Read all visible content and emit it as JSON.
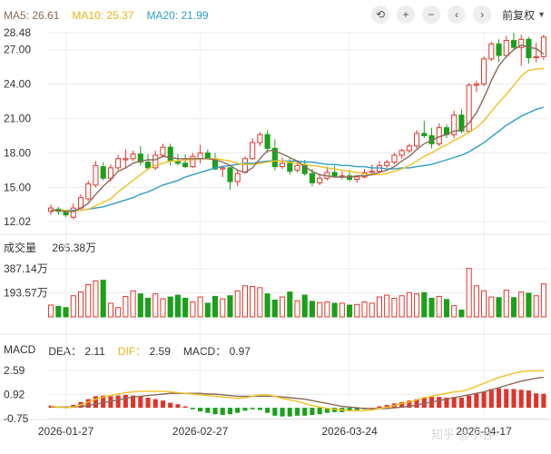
{
  "legend": {
    "ma5_label": "MA5:",
    "ma5_value": "26.61",
    "ma10_label": "MA10:",
    "ma10_value": "25.37",
    "ma20_label": "MA20:",
    "ma20_value": "21.99"
  },
  "toolbar": {
    "icons": [
      "undo-icon",
      "zoom-in-icon",
      "zoom-out-icon",
      "prev-icon",
      "next-icon"
    ],
    "glyphs": [
      "⟲",
      "+",
      "−",
      "‹",
      "›"
    ],
    "adjust_label": "前复权"
  },
  "volume": {
    "label": "成交量",
    "value": "265.38万",
    "axis": [
      "387.14万",
      "193.57万"
    ]
  },
  "macd_header": {
    "macd_title": "MACD",
    "dea_label": "DEA：",
    "dea_value": "2.11",
    "dif_label": "DIF：",
    "dif_value": "2.59",
    "macd_label": "MACD：",
    "macd_value": "0.97"
  },
  "price_axis": [
    "28.48",
    "27.00",
    "24.00",
    "21.00",
    "18.00",
    "15.00",
    "12.02"
  ],
  "macd_axis": [
    "2.59",
    "0.92",
    "-0.75"
  ],
  "date_labels": [
    "2026-01-27",
    "2026-02-27",
    "2026-03-24",
    "2026-04-17"
  ],
  "watermark": "知乎 @小谷",
  "colors": {
    "up": "#e0342b",
    "down": "#1aa01a",
    "ma5": "#8b6a5a",
    "ma10": "#f0c020",
    "ma20": "#2b9ec6",
    "dif": "#f0c020",
    "dea": "#8b6a5a"
  },
  "chart_data": {
    "type": "candlestick",
    "price_ylim": [
      12.02,
      28.48
    ],
    "date_ticks": [
      {
        "index": 2,
        "label": "2026-01-27"
      },
      {
        "index": 20,
        "label": "2026-02-27"
      },
      {
        "index": 40,
        "label": "2026-03-24"
      },
      {
        "index": 58,
        "label": "2026-04-17"
      }
    ],
    "candles": [
      [
        12.9,
        13.2,
        13.5,
        12.6
      ],
      [
        13.1,
        12.9,
        13.3,
        12.6
      ],
      [
        12.9,
        12.6,
        13.0,
        12.4
      ],
      [
        12.4,
        13.2,
        13.6,
        12.2
      ],
      [
        13.2,
        14.1,
        14.4,
        13.0
      ],
      [
        14.0,
        15.3,
        15.6,
        13.8
      ],
      [
        15.2,
        16.9,
        17.3,
        15.0
      ],
      [
        16.8,
        15.8,
        17.2,
        15.6
      ],
      [
        15.8,
        16.7,
        17.0,
        15.5
      ],
      [
        16.7,
        17.5,
        17.8,
        16.5
      ],
      [
        17.4,
        17.5,
        18.3,
        16.7
      ],
      [
        17.5,
        17.9,
        18.2,
        17.3
      ],
      [
        17.9,
        17.2,
        18.6,
        16.9
      ],
      [
        17.2,
        16.7,
        17.9,
        16.5
      ],
      [
        16.7,
        17.8,
        18.2,
        16.5
      ],
      [
        17.8,
        18.5,
        18.8,
        17.6
      ],
      [
        18.5,
        17.3,
        18.8,
        16.9
      ],
      [
        17.3,
        17.1,
        17.9,
        16.9
      ],
      [
        17.1,
        16.8,
        17.9,
        16.7
      ],
      [
        16.8,
        17.7,
        18.0,
        16.7
      ],
      [
        17.5,
        18.0,
        18.7,
        17.1
      ],
      [
        18.0,
        17.6,
        18.3,
        17.5
      ],
      [
        17.5,
        16.6,
        18.0,
        16.5
      ],
      [
        16.6,
        16.7,
        16.9,
        15.9
      ],
      [
        16.7,
        15.5,
        16.8,
        14.8
      ],
      [
        15.5,
        16.2,
        16.5,
        15.1
      ],
      [
        16.3,
        17.5,
        17.7,
        16.2
      ],
      [
        17.5,
        18.9,
        19.3,
        17.4
      ],
      [
        18.9,
        19.6,
        19.8,
        18.6
      ],
      [
        19.6,
        18.4,
        20.0,
        18.0
      ],
      [
        18.4,
        16.8,
        19.2,
        16.5
      ],
      [
        16.8,
        17.1,
        17.6,
        16.6
      ],
      [
        17.1,
        16.4,
        17.5,
        16.1
      ],
      [
        16.5,
        16.9,
        17.3,
        16.3
      ],
      [
        16.9,
        16.2,
        17.4,
        16.0
      ],
      [
        16.2,
        15.4,
        16.6,
        15.1
      ],
      [
        15.4,
        15.8,
        16.2,
        15.2
      ],
      [
        15.8,
        16.3,
        16.8,
        15.6
      ],
      [
        16.3,
        16.0,
        16.9,
        15.9
      ],
      [
        16.0,
        16.0,
        16.4,
        15.7
      ],
      [
        16.0,
        15.7,
        16.5,
        15.5
      ],
      [
        15.7,
        15.9,
        16.0,
        15.4
      ],
      [
        15.9,
        16.3,
        16.6,
        15.8
      ],
      [
        16.3,
        16.4,
        17.0,
        16.2
      ],
      [
        16.4,
        16.9,
        17.3,
        16.3
      ],
      [
        16.9,
        17.2,
        17.4,
        16.7
      ],
      [
        17.2,
        17.8,
        18.0,
        17.0
      ],
      [
        17.8,
        18.2,
        18.4,
        17.5
      ],
      [
        18.2,
        18.6,
        18.8,
        18.0
      ],
      [
        18.6,
        19.7,
        20.0,
        18.4
      ],
      [
        19.7,
        19.5,
        20.8,
        19.3
      ],
      [
        19.5,
        18.8,
        20.2,
        18.4
      ],
      [
        18.8,
        20.2,
        20.6,
        18.6
      ],
      [
        20.2,
        19.6,
        20.5,
        19.3
      ],
      [
        19.6,
        21.3,
        21.7,
        19.3
      ],
      [
        21.3,
        19.9,
        21.8,
        19.7
      ],
      [
        19.9,
        23.9,
        24.1,
        19.7
      ],
      [
        23.9,
        24.0,
        24.3,
        23.3
      ],
      [
        24.0,
        26.2,
        26.4,
        23.8
      ],
      [
        26.2,
        27.5,
        27.7,
        26.0
      ],
      [
        27.5,
        26.5,
        27.9,
        25.9
      ],
      [
        26.5,
        27.8,
        28.2,
        26.3
      ],
      [
        27.8,
        27.2,
        28.48,
        27.0
      ],
      [
        27.2,
        27.9,
        28.3,
        25.6
      ],
      [
        27.9,
        26.3,
        28.1,
        25.8
      ],
      [
        26.3,
        26.4,
        27.6,
        25.9
      ],
      [
        26.4,
        28.1,
        28.3,
        26.1
      ]
    ],
    "ma5": [
      13.0,
      13.0,
      12.9,
      12.9,
      13.2,
      13.6,
      14.4,
      15.1,
      15.7,
      16.4,
      16.7,
      17.1,
      17.3,
      17.4,
      17.4,
      17.7,
      17.6,
      17.5,
      17.5,
      17.5,
      17.5,
      17.5,
      17.4,
      17.2,
      16.9,
      16.5,
      16.3,
      16.7,
      17.5,
      18.2,
      18.2,
      17.9,
      17.6,
      17.3,
      16.8,
      16.4,
      16.1,
      16.0,
      15.9,
      15.9,
      15.9,
      16.0,
      16.0,
      16.1,
      16.3,
      16.5,
      16.8,
      17.3,
      17.7,
      18.3,
      18.8,
      19.1,
      19.4,
      19.6,
      19.9,
      20.0,
      20.6,
      21.5,
      22.8,
      24.3,
      25.6,
      26.4,
      27.0,
      27.4,
      27.2,
      27.1,
      26.61
    ],
    "ma10": [
      13.0,
      13.0,
      13.0,
      12.9,
      13.0,
      13.1,
      13.4,
      13.7,
      14.0,
      14.6,
      15.1,
      15.6,
      16.1,
      16.6,
      16.9,
      17.1,
      17.3,
      17.3,
      17.4,
      17.4,
      17.5,
      17.5,
      17.5,
      17.4,
      17.3,
      17.1,
      17.0,
      17.0,
      17.1,
      17.2,
      17.3,
      17.3,
      17.2,
      17.1,
      17.0,
      16.9,
      16.8,
      16.7,
      16.6,
      16.5,
      16.4,
      16.3,
      16.2,
      16.1,
      16.1,
      16.2,
      16.4,
      16.6,
      16.9,
      17.3,
      17.7,
      18.0,
      18.4,
      18.7,
      19.1,
      19.4,
      19.8,
      20.2,
      20.8,
      21.6,
      22.4,
      23.1,
      23.9,
      24.7,
      25.2,
      25.3,
      25.37
    ],
    "ma20": [
      13.0,
      13.0,
      13.0,
      13.0,
      13.0,
      13.1,
      13.2,
      13.3,
      13.5,
      13.7,
      13.9,
      14.1,
      14.4,
      14.6,
      14.9,
      15.2,
      15.4,
      15.6,
      15.9,
      16.1,
      16.3,
      16.5,
      16.7,
      16.8,
      16.9,
      17.0,
      17.1,
      17.1,
      17.2,
      17.3,
      17.3,
      17.3,
      17.3,
      17.3,
      17.2,
      17.2,
      17.1,
      17.0,
      17.0,
      16.9,
      16.9,
      16.8,
      16.8,
      16.7,
      16.7,
      16.6,
      16.6,
      16.7,
      16.7,
      16.8,
      16.9,
      17.0,
      17.2,
      17.4,
      17.6,
      17.8,
      18.1,
      18.5,
      18.9,
      19.4,
      19.9,
      20.4,
      20.8,
      21.2,
      21.5,
      21.8,
      21.99
    ],
    "volume_ylim": [
      0,
      387.14
    ],
    "volume": [
      95,
      85,
      75,
      170,
      200,
      260,
      290,
      295,
      110,
      75,
      165,
      210,
      185,
      150,
      185,
      145,
      160,
      175,
      150,
      120,
      160,
      110,
      165,
      145,
      170,
      210,
      250,
      245,
      235,
      185,
      135,
      160,
      200,
      130,
      175,
      125,
      115,
      120,
      110,
      110,
      95,
      100,
      120,
      110,
      160,
      175,
      150,
      170,
      195,
      185,
      195,
      150,
      165,
      140,
      90,
      55,
      390,
      250,
      210,
      160,
      155,
      215,
      155,
      200,
      190,
      170,
      265.38
    ],
    "macd_ylim": [
      -0.75,
      2.59
    ],
    "macd": [
      0.15,
      0.1,
      0.05,
      0.2,
      0.4,
      0.6,
      0.8,
      0.85,
      0.8,
      0.85,
      0.9,
      0.85,
      0.8,
      0.7,
      0.6,
      0.5,
      0.35,
      0.25,
      0.1,
      -0.1,
      -0.25,
      -0.35,
      -0.45,
      -0.5,
      -0.45,
      -0.35,
      -0.2,
      -0.1,
      -0.15,
      -0.35,
      -0.55,
      -0.6,
      -0.6,
      -0.55,
      -0.55,
      -0.5,
      -0.45,
      -0.35,
      -0.3,
      -0.3,
      -0.2,
      -0.15,
      -0.1,
      0.0,
      0.1,
      0.2,
      0.3,
      0.4,
      0.5,
      0.6,
      0.7,
      0.75,
      0.75,
      0.7,
      0.75,
      0.7,
      0.85,
      1.0,
      1.1,
      1.3,
      1.35,
      1.3,
      1.3,
      1.25,
      1.2,
      1.0,
      0.97
    ],
    "dif": [
      0.1,
      0.05,
      0.0,
      0.05,
      0.2,
      0.4,
      0.6,
      0.75,
      0.85,
      0.95,
      1.05,
      1.1,
      1.15,
      1.15,
      1.15,
      1.15,
      1.1,
      1.05,
      1.0,
      0.95,
      0.9,
      0.85,
      0.8,
      0.75,
      0.7,
      0.65,
      0.7,
      0.8,
      0.9,
      0.9,
      0.8,
      0.65,
      0.55,
      0.45,
      0.3,
      0.15,
      0.05,
      -0.05,
      -0.1,
      -0.15,
      -0.2,
      -0.2,
      -0.2,
      -0.15,
      -0.05,
      0.05,
      0.15,
      0.3,
      0.4,
      0.55,
      0.7,
      0.8,
      0.9,
      1.0,
      1.1,
      1.15,
      1.3,
      1.5,
      1.7,
      1.9,
      2.1,
      2.25,
      2.4,
      2.5,
      2.55,
      2.55,
      2.59
    ],
    "dea": [
      0.05,
      0.05,
      0.05,
      0.05,
      0.1,
      0.15,
      0.25,
      0.35,
      0.45,
      0.55,
      0.65,
      0.75,
      0.8,
      0.85,
      0.9,
      0.95,
      1.0,
      1.0,
      1.0,
      1.0,
      1.0,
      0.95,
      0.95,
      0.9,
      0.85,
      0.8,
      0.8,
      0.8,
      0.8,
      0.8,
      0.8,
      0.75,
      0.7,
      0.65,
      0.6,
      0.5,
      0.4,
      0.3,
      0.2,
      0.1,
      0.05,
      0.0,
      -0.05,
      -0.05,
      -0.05,
      -0.05,
      0.0,
      0.05,
      0.1,
      0.2,
      0.3,
      0.4,
      0.5,
      0.6,
      0.7,
      0.8,
      0.9,
      1.0,
      1.1,
      1.25,
      1.4,
      1.55,
      1.7,
      1.85,
      1.95,
      2.05,
      2.11
    ]
  }
}
